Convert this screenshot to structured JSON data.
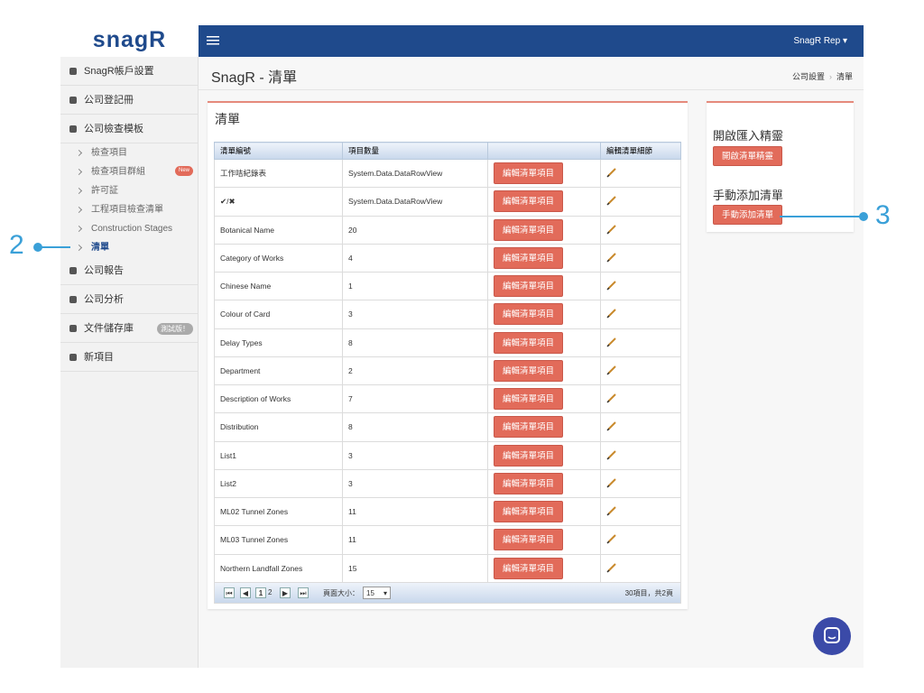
{
  "logo": "snagR",
  "user": "SnagR Rep",
  "sidebar": {
    "items": [
      {
        "label": "SnagR帳戶設置"
      },
      {
        "label": "公司登記冊"
      },
      {
        "label": "公司檢查模板"
      }
    ],
    "sub_items": [
      {
        "label": "檢查項目"
      },
      {
        "label": "檢查項目群組",
        "badge": "New"
      },
      {
        "label": "許可証"
      },
      {
        "label": "工程項目檢查清單"
      },
      {
        "label": "Construction Stages"
      },
      {
        "label": "清單"
      }
    ],
    "more_items": [
      {
        "label": "公司報告"
      },
      {
        "label": "公司分析"
      },
      {
        "label": "文件儲存庫",
        "badge": "測試版！"
      },
      {
        "label": "新項目"
      }
    ]
  },
  "page_title": "SnagR - 清單",
  "breadcrumb": [
    "公司設置",
    "清單"
  ],
  "panel_title": "清單",
  "table": {
    "headers": [
      "清單編號",
      "項目數量",
      "編輯清單細節"
    ],
    "row_button": "編輯清單項目",
    "rows": [
      [
        "工作咭紀錄表",
        "System.Data.DataRowView"
      ],
      [
        "✔/✖",
        "System.Data.DataRowView"
      ],
      [
        "Botanical Name",
        "20"
      ],
      [
        "Category of Works",
        "4"
      ],
      [
        "Chinese Name",
        "1"
      ],
      [
        "Colour of Card",
        "3"
      ],
      [
        "Delay Types",
        "8"
      ],
      [
        "Department",
        "2"
      ],
      [
        "Description of Works",
        "7"
      ],
      [
        "Distribution",
        "8"
      ],
      [
        "List1",
        "3"
      ],
      [
        "List2",
        "3"
      ],
      [
        "ML02 Tunnel Zones",
        "11"
      ],
      [
        "ML03 Tunnel Zones",
        "11"
      ],
      [
        "Northern Landfall Zones",
        "15"
      ]
    ],
    "pager": {
      "pages": [
        "1",
        "2"
      ],
      "page_size_label": "頁面大小：",
      "page_size": "15",
      "summary": "30項目，共2頁"
    }
  },
  "side_panel": {
    "import_title": "開啟匯入精靈",
    "import_button": "開啟清單精靈",
    "add_title": "手動添加清單",
    "add_button": "手動添加清單"
  },
  "annotations": [
    "2",
    "3"
  ]
}
